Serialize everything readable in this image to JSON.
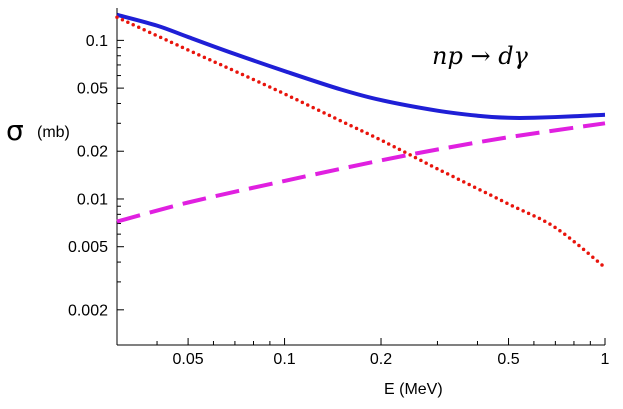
{
  "chart_data": {
    "type": "line",
    "xscale": "log",
    "yscale": "log",
    "xlim": [
      0.03,
      1.0
    ],
    "ylim": [
      0.0012,
      0.16
    ],
    "xlabel": "E  (MeV)",
    "ylabel_symbol": "σ",
    "ylabel_unit": "(mb)",
    "annotation": "np → dγ",
    "grid": false,
    "x_ticks": [
      {
        "value": 0.05,
        "label": "0.05"
      },
      {
        "value": 0.1,
        "label": "0.1"
      },
      {
        "value": 0.2,
        "label": "0.2"
      },
      {
        "value": 0.5,
        "label": "0.5"
      },
      {
        "value": 1.0,
        "label": "1"
      }
    ],
    "y_ticks": [
      {
        "value": 0.1,
        "label": "0.1"
      },
      {
        "value": 0.05,
        "label": "0.05"
      },
      {
        "value": 0.02,
        "label": "0.02"
      },
      {
        "value": 0.01,
        "label": "0.01"
      },
      {
        "value": 0.005,
        "label": "0.005"
      },
      {
        "value": 0.002,
        "label": "0.002"
      }
    ],
    "series": [
      {
        "style": "solid",
        "color": "#1f1fd6",
        "x": [
          0.03,
          0.04,
          0.05,
          0.07,
          0.1,
          0.15,
          0.2,
          0.3,
          0.4,
          0.5,
          0.6,
          0.8,
          1.0
        ],
        "y": [
          0.145,
          0.124,
          0.105,
          0.082,
          0.064,
          0.049,
          0.042,
          0.036,
          0.0335,
          0.0325,
          0.0325,
          0.0332,
          0.034
        ]
      },
      {
        "style": "dotted",
        "color": "#e8140c",
        "x": [
          0.03,
          0.05,
          0.07,
          0.1,
          0.15,
          0.2,
          0.3,
          0.5,
          0.7,
          1.0
        ],
        "y": [
          0.14,
          0.087,
          0.064,
          0.046,
          0.031,
          0.0235,
          0.0155,
          0.0093,
          0.0066,
          0.0037
        ]
      },
      {
        "style": "dashed",
        "color": "#e020e0",
        "x": [
          0.03,
          0.05,
          0.1,
          0.2,
          0.3,
          0.5,
          1.0
        ],
        "y": [
          0.0072,
          0.0095,
          0.013,
          0.0175,
          0.0205,
          0.0245,
          0.03
        ]
      }
    ]
  }
}
